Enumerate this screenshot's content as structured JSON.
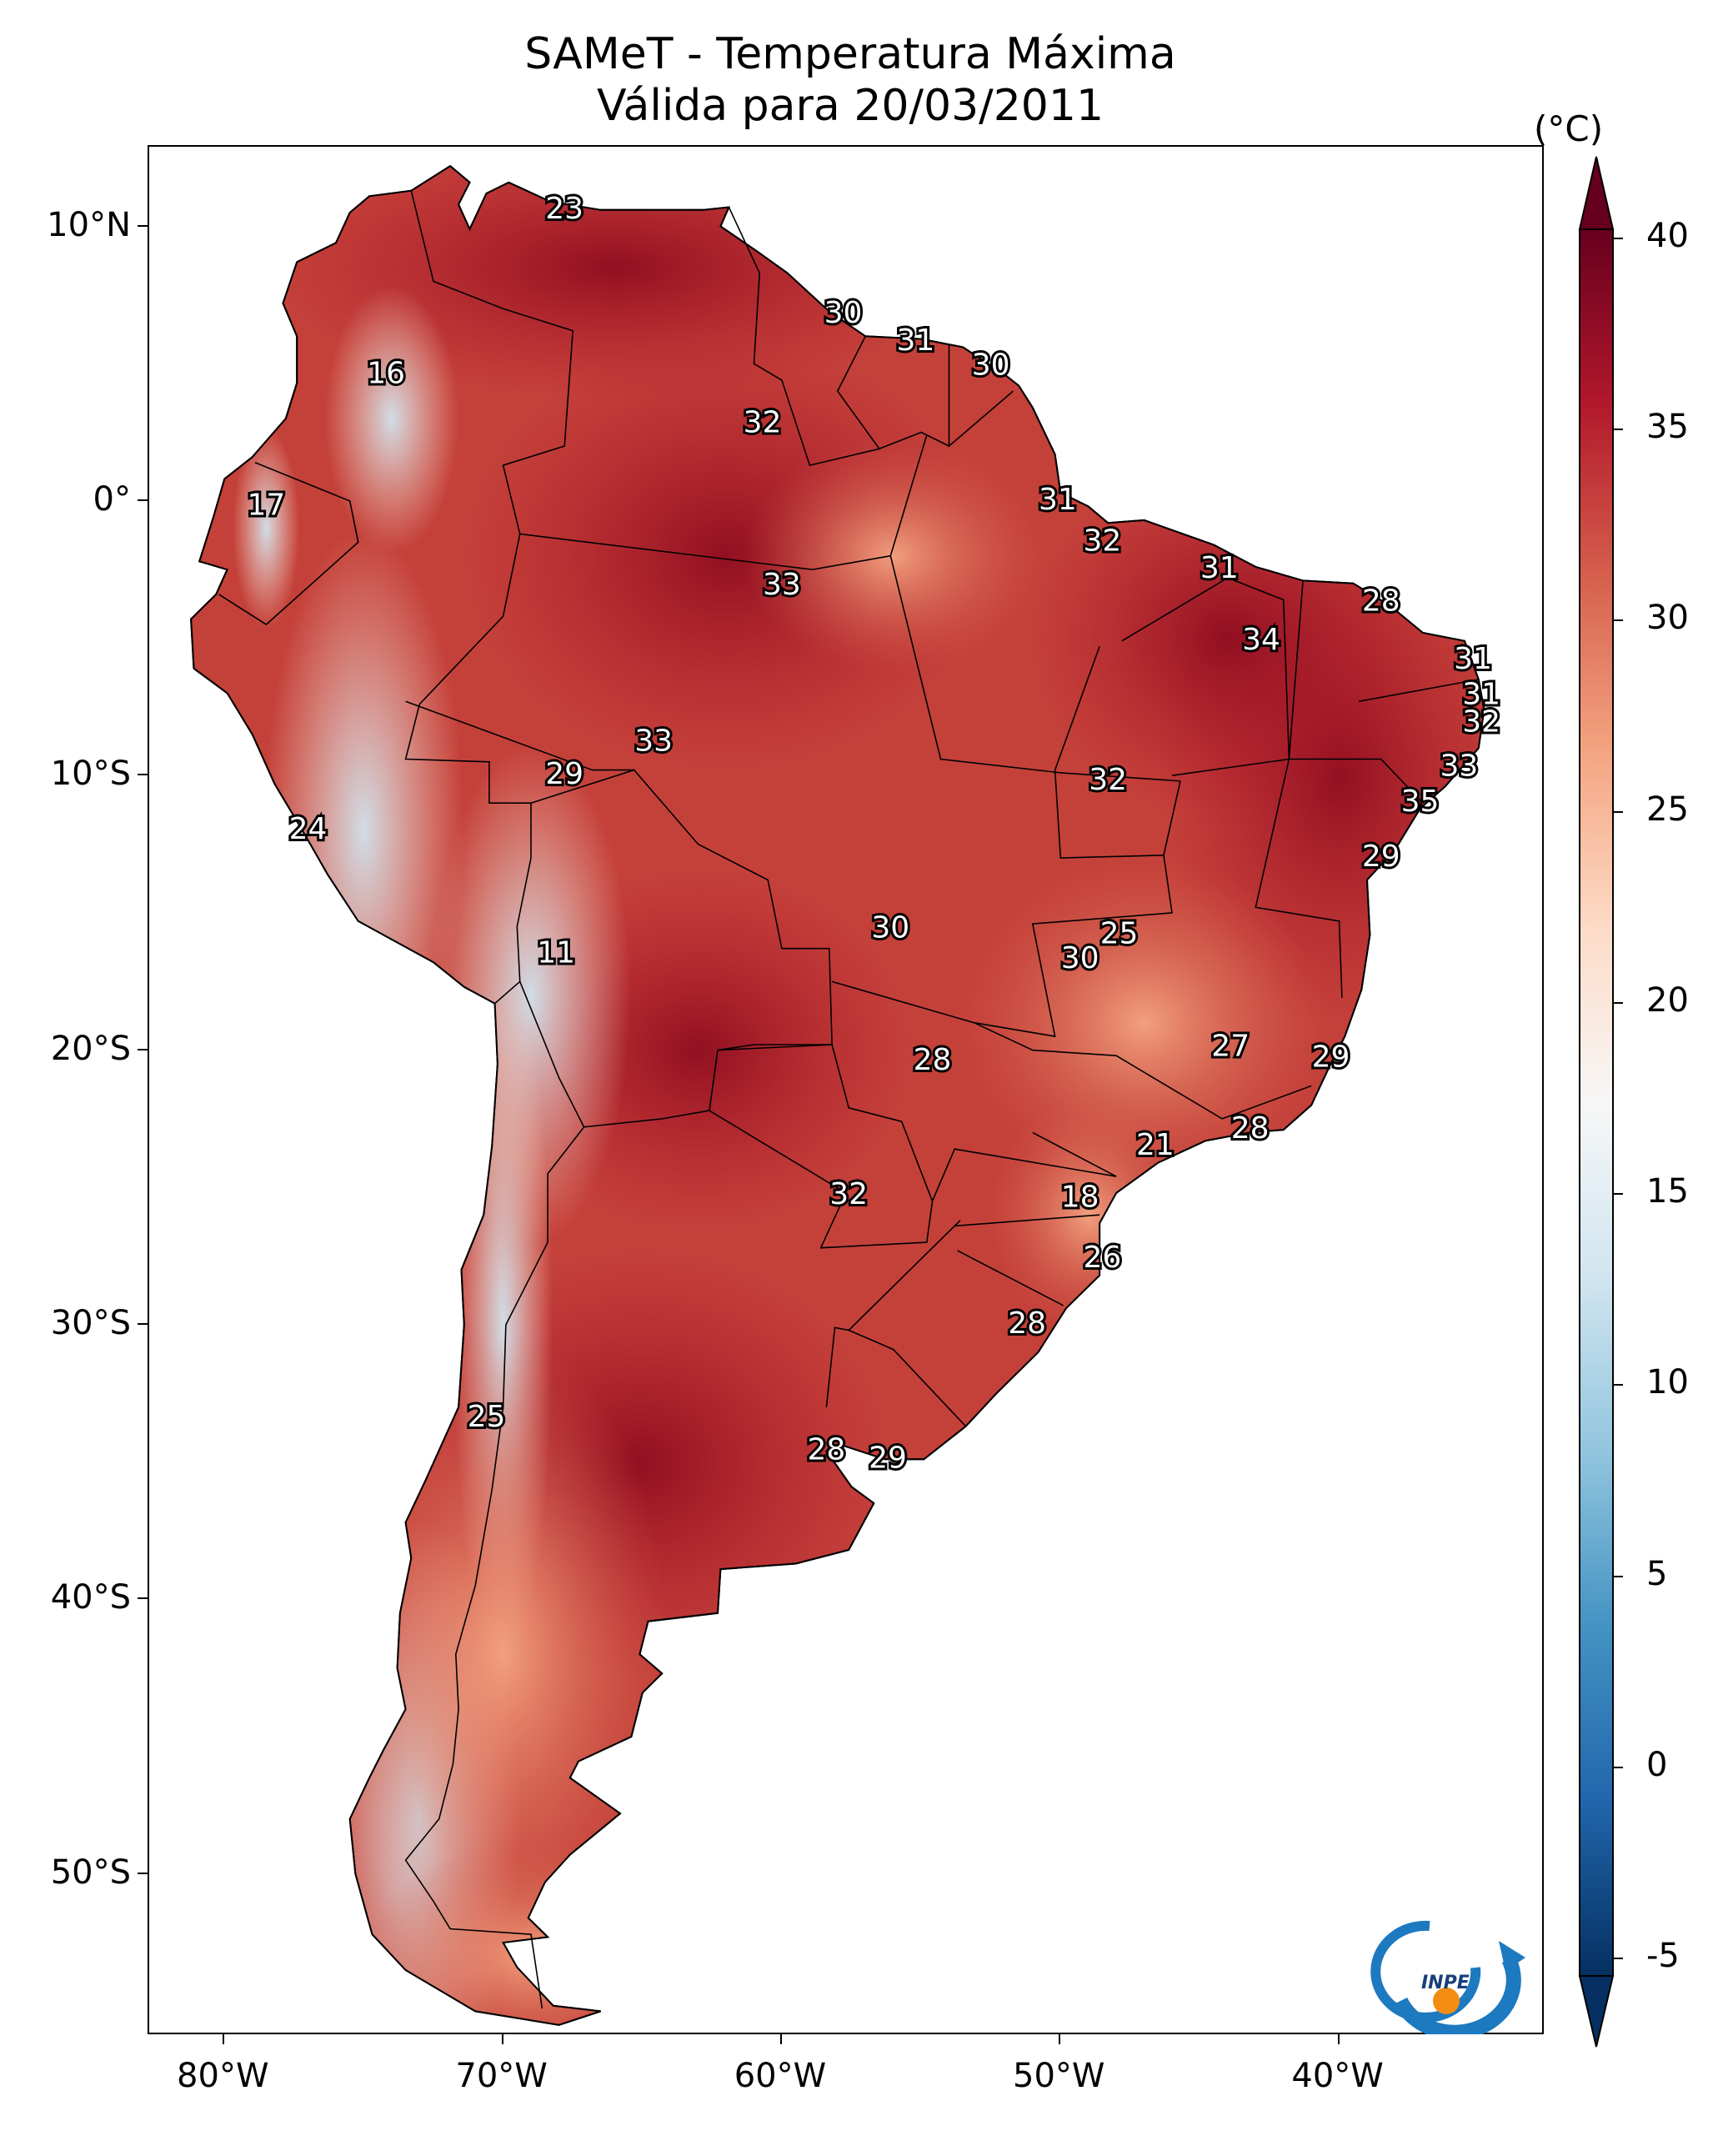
{
  "title_line1": "SAMeT - Temperatura Máxima",
  "title_line2": "Válida para 20/03/2011",
  "colorbar": {
    "unit": "(°C)",
    "ticks": [
      "40",
      "35",
      "30",
      "25",
      "20",
      "15",
      "10",
      "5",
      "0",
      "-5"
    ],
    "range": [
      -5,
      40
    ],
    "extend": "both",
    "colormap": "RdBu_r",
    "colors": [
      "#053061",
      "#2166ac",
      "#4393c3",
      "#92c5de",
      "#d1e5f0",
      "#f7f7f7",
      "#fddbc7",
      "#f4a582",
      "#d6604d",
      "#b2182b",
      "#67001f"
    ]
  },
  "axes": {
    "lat_labels": [
      "10°N",
      "0°",
      "10°S",
      "20°S",
      "30°S",
      "40°S",
      "50°S"
    ],
    "lon_labels": [
      "80°W",
      "70°W",
      "60°W",
      "50°W",
      "40°W"
    ]
  },
  "stations": [
    {
      "value": "23",
      "lon": -67.8,
      "lat": 10.6
    },
    {
      "value": "16",
      "lon": -74.2,
      "lat": 4.6
    },
    {
      "value": "30",
      "lon": -57.8,
      "lat": 6.8
    },
    {
      "value": "31",
      "lon": -55.2,
      "lat": 5.8
    },
    {
      "value": "30",
      "lon": -52.5,
      "lat": 4.9
    },
    {
      "value": "32",
      "lon": -60.7,
      "lat": 2.8
    },
    {
      "value": "17",
      "lon": -78.5,
      "lat": -0.2
    },
    {
      "value": "31",
      "lon": -50.1,
      "lat": 0.0
    },
    {
      "value": "32",
      "lon": -48.5,
      "lat": -1.5
    },
    {
      "value": "31",
      "lon": -44.3,
      "lat": -2.5
    },
    {
      "value": "33",
      "lon": -60.0,
      "lat": -3.1
    },
    {
      "value": "28",
      "lon": -38.5,
      "lat": -3.7
    },
    {
      "value": "34",
      "lon": -42.8,
      "lat": -5.1
    },
    {
      "value": "31",
      "lon": -35.2,
      "lat": -5.8
    },
    {
      "value": "31",
      "lon": -34.9,
      "lat": -7.1
    },
    {
      "value": "32",
      "lon": -34.9,
      "lat": -8.1
    },
    {
      "value": "33",
      "lon": -64.6,
      "lat": -8.8
    },
    {
      "value": "29",
      "lon": -67.8,
      "lat": -10.0
    },
    {
      "value": "32",
      "lon": -48.3,
      "lat": -10.2
    },
    {
      "value": "33",
      "lon": -35.7,
      "lat": -9.7
    },
    {
      "value": "35",
      "lon": -37.1,
      "lat": -11.0
    },
    {
      "value": "24",
      "lon": -77.0,
      "lat": -12.0
    },
    {
      "value": "29",
      "lon": -38.5,
      "lat": -13.0
    },
    {
      "value": "30",
      "lon": -56.1,
      "lat": -15.6
    },
    {
      "value": "25",
      "lon": -47.9,
      "lat": -15.8
    },
    {
      "value": "11",
      "lon": -68.1,
      "lat": -16.5
    },
    {
      "value": "30",
      "lon": -49.3,
      "lat": -16.7
    },
    {
      "value": "27",
      "lon": -43.9,
      "lat": -19.9
    },
    {
      "value": "28",
      "lon": -54.6,
      "lat": -20.4
    },
    {
      "value": "29",
      "lon": -40.3,
      "lat": -20.3
    },
    {
      "value": "21",
      "lon": -46.6,
      "lat": -23.5
    },
    {
      "value": "28",
      "lon": -43.2,
      "lat": -22.9
    },
    {
      "value": "32",
      "lon": -57.6,
      "lat": -25.3
    },
    {
      "value": "18",
      "lon": -49.3,
      "lat": -25.4
    },
    {
      "value": "26",
      "lon": -48.5,
      "lat": -27.6
    },
    {
      "value": "28",
      "lon": -51.2,
      "lat": -30.0
    },
    {
      "value": "25",
      "lon": -70.6,
      "lat": -33.4
    },
    {
      "value": "28",
      "lon": -58.4,
      "lat": -34.6
    },
    {
      "value": "29",
      "lon": -56.2,
      "lat": -34.9
    }
  ],
  "logo": {
    "text": "INPE"
  }
}
